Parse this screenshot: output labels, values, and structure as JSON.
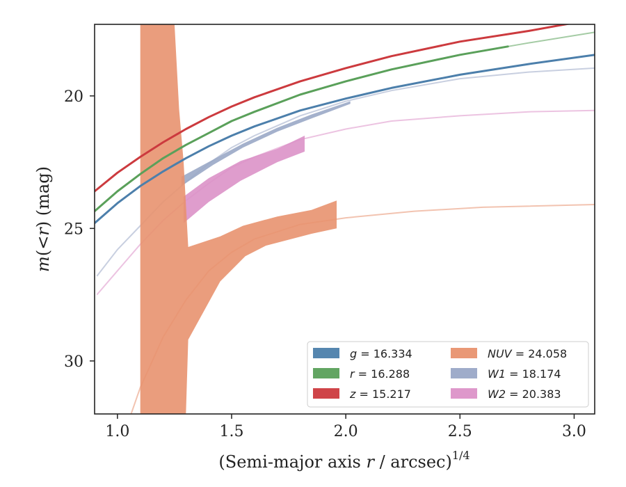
{
  "chart_data": {
    "type": "line",
    "xlabel_main": "(Semi-major axis ",
    "xlabel_var": "r",
    "xlabel_tail": " / arcsec)",
    "xlabel_sup": "1/4",
    "ylabel_var": "m",
    "ylabel_mid": "(<",
    "ylabel_var2": "r",
    "ylabel_tail": ") (mag)",
    "xlim": [
      0.9,
      3.09
    ],
    "ylim": [
      32.0,
      17.3
    ],
    "y_inverted": true,
    "xticks": [
      1.0,
      1.5,
      2.0,
      2.5,
      3.0
    ],
    "xtick_labels": [
      "1.0",
      "1.5",
      "2.0",
      "2.5",
      "3.0"
    ],
    "yticks": [
      20,
      25,
      30
    ],
    "ytick_labels": [
      "20",
      "25",
      "30"
    ],
    "grid": false,
    "legend_position": "lower-right",
    "legend": [
      {
        "var": "g",
        "value": "16.334",
        "color": "#4c7fab"
      },
      {
        "var": "r",
        "value": "16.288",
        "color": "#5aa05a"
      },
      {
        "var": "z",
        "value": "15.217",
        "color": "#cc3a3e"
      },
      {
        "var": "NUV",
        "value": "24.058",
        "color": "#e8926f"
      },
      {
        "var": "W1",
        "value": "18.174",
        "color": "#9aa8c7"
      },
      {
        "var": "W2",
        "value": "20.383",
        "color": "#dc92c8"
      }
    ],
    "series": [
      {
        "name": "g",
        "color": "#4c7fab",
        "model": [
          [
            0.9,
            24.8
          ],
          [
            1.0,
            24.05
          ],
          [
            1.1,
            23.4
          ],
          [
            1.2,
            22.85
          ],
          [
            1.3,
            22.35
          ],
          [
            1.4,
            21.9
          ],
          [
            1.5,
            21.5
          ],
          [
            1.6,
            21.15
          ],
          [
            1.8,
            20.55
          ],
          [
            2.0,
            20.1
          ],
          [
            2.2,
            19.7
          ],
          [
            2.5,
            19.2
          ],
          [
            2.8,
            18.8
          ],
          [
            3.09,
            18.45
          ]
        ],
        "data_x_max": 3.09
      },
      {
        "name": "r",
        "color": "#5aa05a",
        "model": [
          [
            0.9,
            24.35
          ],
          [
            1.0,
            23.6
          ],
          [
            1.1,
            22.95
          ],
          [
            1.2,
            22.35
          ],
          [
            1.3,
            21.85
          ],
          [
            1.4,
            21.4
          ],
          [
            1.5,
            20.95
          ],
          [
            1.6,
            20.6
          ],
          [
            1.8,
            19.95
          ],
          [
            2.0,
            19.45
          ],
          [
            2.2,
            19.0
          ],
          [
            2.5,
            18.45
          ],
          [
            2.8,
            18.0
          ],
          [
            3.09,
            17.6
          ]
        ],
        "data_x_max": 2.71
      },
      {
        "name": "z",
        "color": "#cc3a3e",
        "model": [
          [
            0.9,
            23.6
          ],
          [
            1.0,
            22.9
          ],
          [
            1.1,
            22.3
          ],
          [
            1.2,
            21.75
          ],
          [
            1.3,
            21.25
          ],
          [
            1.4,
            20.8
          ],
          [
            1.5,
            20.4
          ],
          [
            1.6,
            20.05
          ],
          [
            1.8,
            19.45
          ],
          [
            2.0,
            18.95
          ],
          [
            2.2,
            18.5
          ],
          [
            2.5,
            17.95
          ],
          [
            2.8,
            17.55
          ],
          [
            3.09,
            17.1
          ]
        ],
        "data_x_max": 3.03
      },
      {
        "name": "W1",
        "color": "#9aa8c7",
        "model": [
          [
            0.91,
            26.8
          ],
          [
            1.0,
            25.8
          ],
          [
            1.1,
            24.9
          ],
          [
            1.2,
            24.0
          ],
          [
            1.3,
            23.25
          ],
          [
            1.4,
            22.55
          ],
          [
            1.5,
            21.95
          ],
          [
            1.6,
            21.5
          ],
          [
            1.8,
            20.75
          ],
          [
            2.0,
            20.2
          ],
          [
            2.2,
            19.8
          ],
          [
            2.5,
            19.35
          ],
          [
            2.8,
            19.1
          ],
          [
            3.09,
            18.95
          ]
        ],
        "band_upper": [
          [
            1.28,
            23.05
          ],
          [
            1.42,
            22.4
          ],
          [
            1.55,
            21.8
          ],
          [
            1.7,
            21.2
          ],
          [
            1.85,
            20.7
          ],
          [
            2.02,
            20.2
          ]
        ],
        "band_lower": [
          [
            2.02,
            20.3
          ],
          [
            1.85,
            20.85
          ],
          [
            1.7,
            21.35
          ],
          [
            1.55,
            21.95
          ],
          [
            1.42,
            22.6
          ],
          [
            1.28,
            23.4
          ]
        ]
      },
      {
        "name": "W2",
        "color": "#dc92c8",
        "model": [
          [
            0.91,
            27.5
          ],
          [
            1.0,
            26.6
          ],
          [
            1.1,
            25.6
          ],
          [
            1.2,
            24.7
          ],
          [
            1.3,
            23.95
          ],
          [
            1.4,
            23.3
          ],
          [
            1.5,
            22.7
          ],
          [
            1.6,
            22.3
          ],
          [
            1.8,
            21.65
          ],
          [
            2.0,
            21.25
          ],
          [
            2.2,
            20.95
          ],
          [
            2.5,
            20.75
          ],
          [
            2.8,
            20.6
          ],
          [
            3.09,
            20.55
          ]
        ],
        "band_upper": [
          [
            1.29,
            23.8
          ],
          [
            1.4,
            23.1
          ],
          [
            1.54,
            22.45
          ],
          [
            1.7,
            22.0
          ],
          [
            1.82,
            21.5
          ]
        ],
        "band_lower": [
          [
            1.82,
            22.1
          ],
          [
            1.7,
            22.5
          ],
          [
            1.54,
            23.2
          ],
          [
            1.4,
            24.0
          ],
          [
            1.29,
            24.8
          ]
        ]
      },
      {
        "name": "NUV",
        "color": "#e8926f",
        "model": [
          [
            1.06,
            32.0
          ],
          [
            1.1,
            31.0
          ],
          [
            1.2,
            29.1
          ],
          [
            1.3,
            27.7
          ],
          [
            1.4,
            26.6
          ],
          [
            1.5,
            25.9
          ],
          [
            1.6,
            25.4
          ],
          [
            1.8,
            24.85
          ],
          [
            2.0,
            24.6
          ],
          [
            2.3,
            24.35
          ],
          [
            2.6,
            24.2
          ],
          [
            3.09,
            24.1
          ]
        ],
        "band_upper": [
          [
            1.1,
            17.3
          ],
          [
            1.25,
            17.3
          ],
          [
            1.27,
            20.5
          ],
          [
            1.29,
            22.5
          ],
          [
            1.31,
            25.7
          ],
          [
            1.45,
            25.3
          ],
          [
            1.55,
            24.9
          ],
          [
            1.7,
            24.55
          ],
          [
            1.85,
            24.3
          ],
          [
            1.96,
            23.95
          ]
        ],
        "band_lower": [
          [
            1.96,
            25.0
          ],
          [
            1.85,
            25.2
          ],
          [
            1.65,
            25.65
          ],
          [
            1.56,
            26.05
          ],
          [
            1.45,
            27.0
          ],
          [
            1.31,
            29.2
          ],
          [
            1.3,
            32.0
          ],
          [
            1.1,
            32.0
          ]
        ]
      }
    ]
  }
}
